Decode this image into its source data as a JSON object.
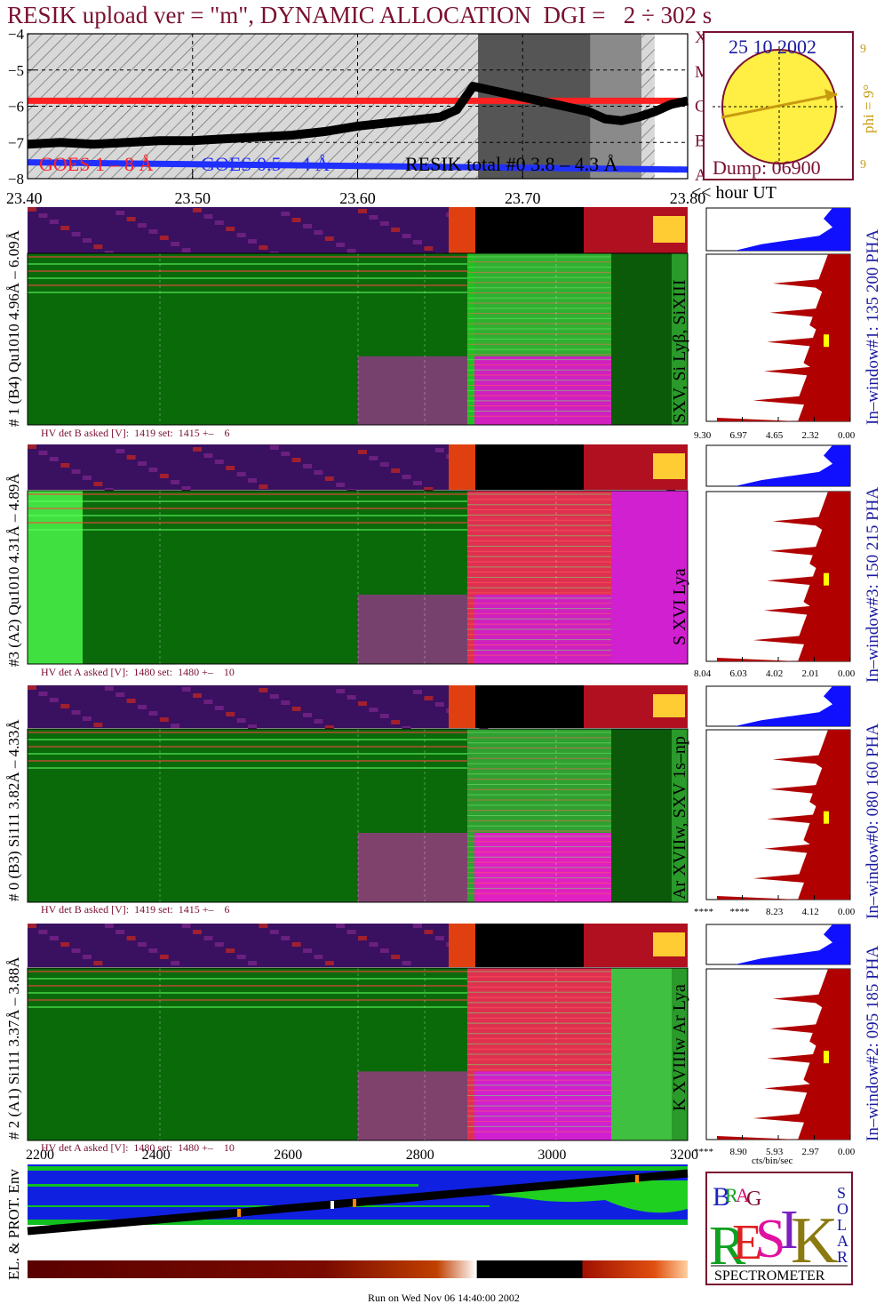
{
  "header": {
    "title": "RESIK upload ver = \"m\", DYNAMIC ALLOCATION  DGI =   2 ÷ 302 s"
  },
  "colors": {
    "title": "#7a1030",
    "goes_long": "#ff2020",
    "goes_short": "#2030ff",
    "resik_total": "#000000",
    "hist_red": "#b00000",
    "hist_blue": "#1010ff",
    "pha_label": "#1a1aa0",
    "sun_fill": "#ffee44",
    "phi_text": "#c89a10"
  },
  "chart_data": [
    {
      "type": "line",
      "name": "lightcurve",
      "x_ticks": [
        "23.40",
        "23.50",
        "23.60",
        "23.70",
        "23.80"
      ],
      "x_unit_label": "<< hour UT",
      "xlim": [
        23.4,
        23.8
      ],
      "y_ticks": [
        "−4",
        "−5",
        "−6",
        "−7",
        "−8"
      ],
      "ylim": [
        -8,
        -4
      ],
      "right_ticks": [
        "X",
        "M",
        "C",
        "B",
        "A"
      ],
      "legend": [
        "GOES 1 – 8 Å",
        "GOES 0.5 – 4 Å",
        "RESIK total #0  3.8 – 4.3 Å"
      ],
      "series": [
        {
          "name": "GOES 1 – 8 Å",
          "color": "#ff2020",
          "x": [
            23.4,
            23.8
          ],
          "y": [
            -5.85,
            -5.85
          ]
        },
        {
          "name": "GOES 0.5 – 4 Å",
          "color": "#2030ff",
          "x": [
            23.4,
            23.8
          ],
          "y": [
            -7.55,
            -7.75
          ]
        },
        {
          "name": "RESIK total #0  3.8 – 4.3 Å",
          "color": "#000000",
          "x": [
            23.4,
            23.42,
            23.44,
            23.46,
            23.48,
            23.5,
            23.52,
            23.54,
            23.56,
            23.58,
            23.6,
            23.62,
            23.64,
            23.65,
            23.66,
            23.67,
            23.74,
            23.75,
            23.76,
            23.77,
            23.78,
            23.79,
            23.8
          ],
          "y": [
            -7.05,
            -7.0,
            -7.05,
            -7.0,
            -6.95,
            -6.95,
            -6.9,
            -6.85,
            -6.8,
            -6.7,
            -6.55,
            -6.45,
            -6.35,
            -6.3,
            -6.1,
            -5.45,
            -6.15,
            -6.35,
            -6.4,
            -6.3,
            -6.15,
            -5.95,
            -5.85
          ]
        }
      ],
      "shaded_regions": [
        {
          "from": 23.4,
          "to": 23.78,
          "style": "hatched"
        },
        {
          "from": 23.673,
          "to": 23.741,
          "style": "dark"
        },
        {
          "from": 23.741,
          "to": 23.772,
          "style": "medium"
        }
      ]
    },
    {
      "type": "histogram",
      "name": "window-1",
      "label": "In–window#1:  135 200 PHA",
      "x_ticks": [
        "9.30",
        "6.97",
        "4.65",
        "2.32",
        "0.00"
      ]
    },
    {
      "type": "histogram",
      "name": "window-3",
      "label": "In–window#3:  150 215 PHA",
      "x_ticks": [
        "8.04",
        "6.03",
        "4.02",
        "2.01",
        "0.00"
      ]
    },
    {
      "type": "histogram",
      "name": "window-0",
      "label": "In–window#0:  080 160 PHA",
      "x_ticks": [
        "****",
        "****",
        "8.23",
        "4.12",
        "0.00"
      ]
    },
    {
      "type": "histogram",
      "name": "window-2",
      "label": "In–window#2:  095 185 PHA",
      "x_ticks": [
        "****",
        "8.90",
        "5.93",
        "2.97",
        "0.00"
      ],
      "x_label": "cts/bin/sec"
    }
  ],
  "sun": {
    "date": "25 10 2002",
    "dump": "Dump: 06900",
    "phi": "phi =  9°",
    "side_top": "9",
    "side_bottom": "9",
    "phi_deg": 9
  },
  "channels": [
    {
      "left_label": "# 1 (B4) Qu1010  4.96Å – 6.09Å",
      "line_label": "SXV, Si Lyβ, SiXIII",
      "hv": "HV det B asked [V]:  1419 set:  1415 +–    6"
    },
    {
      "left_label": "#3 (A2) Qu1010  4.31Å – 4.89Å",
      "line_label": "S XVI Lya",
      "hv": "HV det A asked [V]:  1480 set:  1480 +–    10"
    },
    {
      "left_label": "# 0 (B3) Si111  3.82Å – 4.33Å",
      "line_label": "Ar XVIIw,  SXV 1s–np",
      "hv": "HV det B asked [V]:  1419 set:  1415 +–    6"
    },
    {
      "left_label": "# 2 (A1) Si111  3.37Å –  3.88Å",
      "line_label": "K XVIIIw  Ar Lya",
      "hv": "HV det A asked [V]:  1480 set:  1480 +–    10"
    }
  ],
  "bottom_axis": {
    "ticks": [
      "2200",
      "2400",
      "2600",
      "2800",
      "3000",
      "3200"
    ],
    "env_label": "EL. & PROT. Env"
  },
  "logo": {
    "letters": [
      "B",
      "R",
      "A",
      "G",
      "R",
      "E",
      "S",
      "I",
      "K",
      "S",
      "O",
      "L",
      "A",
      "R"
    ],
    "caption": "SPECTROMETER"
  },
  "footer": {
    "run": "Run on Wed Nov 06 14:40:00 2002"
  }
}
